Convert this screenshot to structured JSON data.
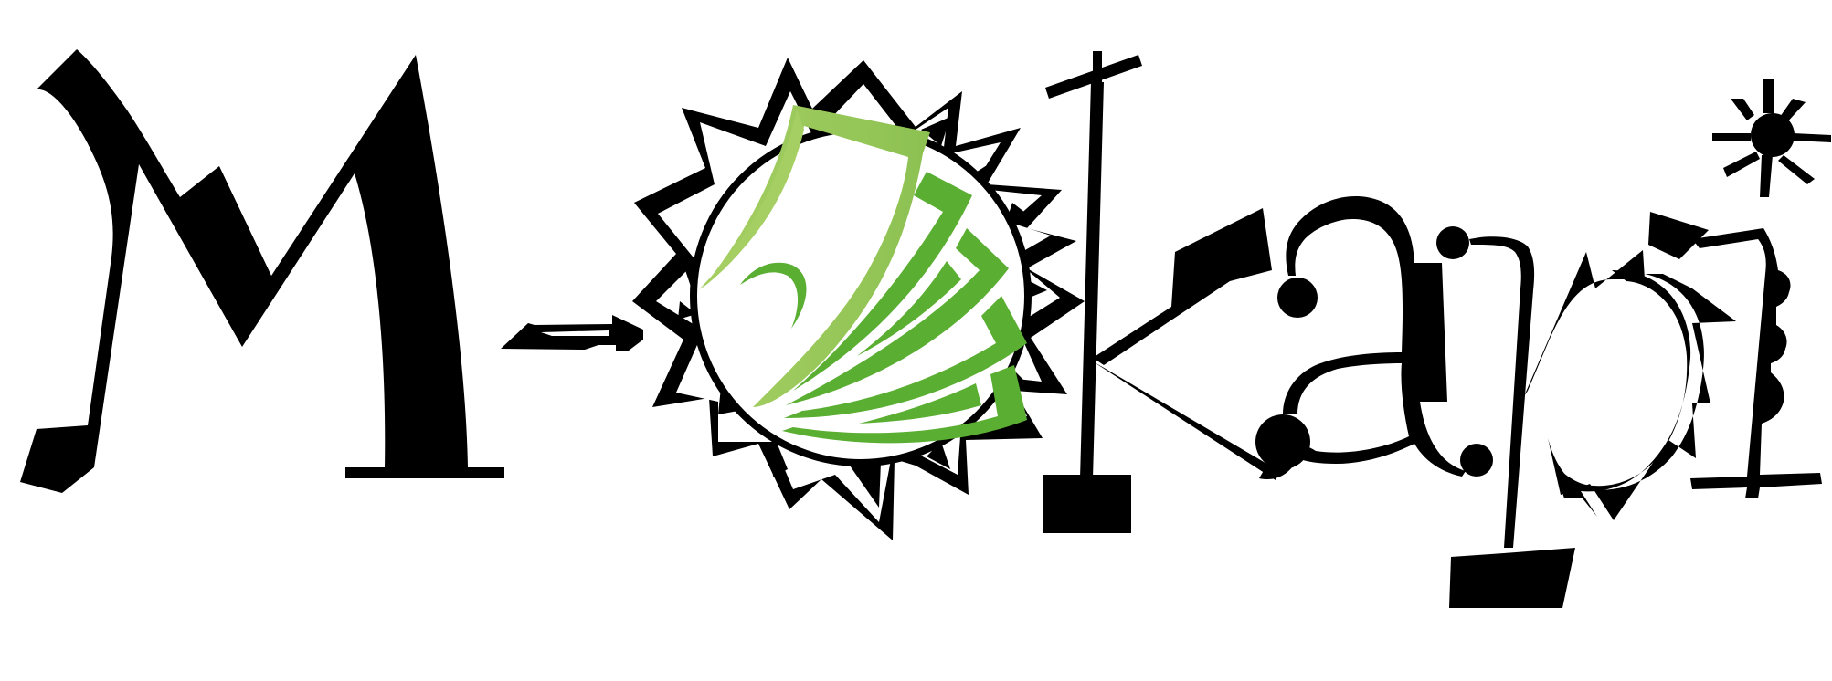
{
  "logo": {
    "wordmark": "MoKapi",
    "colors": {
      "ink": "#000000",
      "background": "#ffffff",
      "leaf_green": "#5aae32",
      "leaf_light_green": "#a6cf63"
    },
    "icons": [
      "sun-emblem-icon",
      "green-leaves-icon",
      "small-star-icon",
      "arrow-icon"
    ]
  }
}
